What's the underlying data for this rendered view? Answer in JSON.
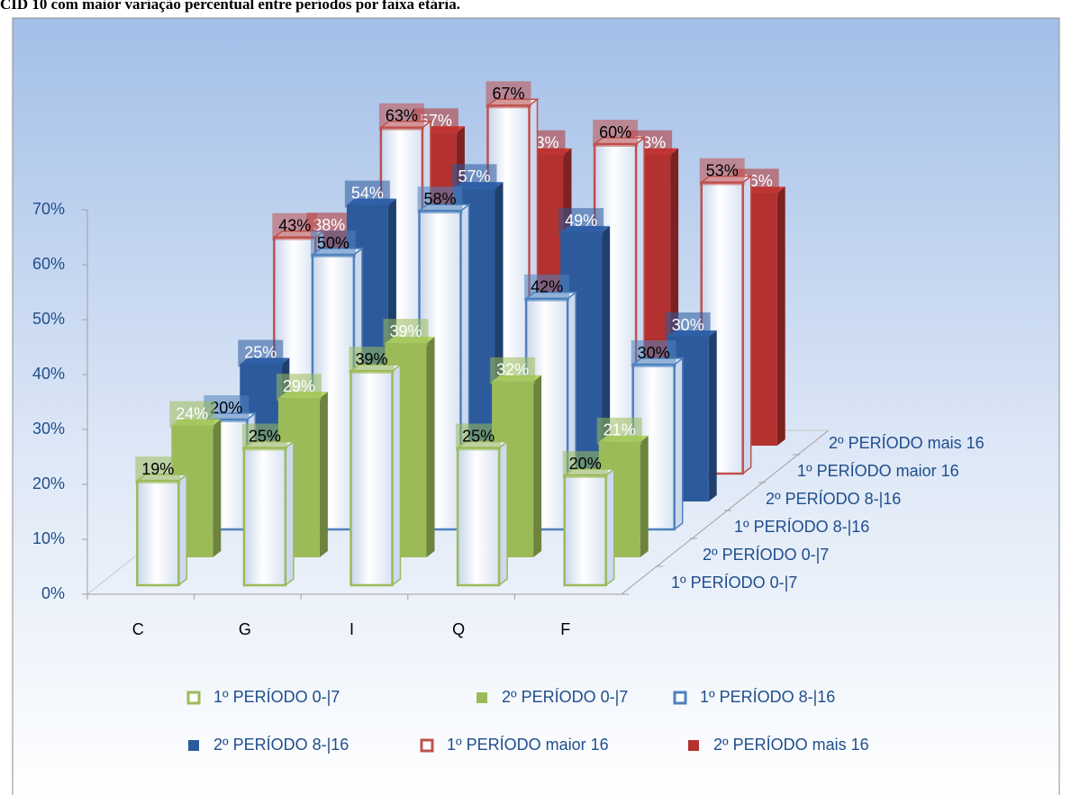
{
  "chart_data": {
    "type": "bar3d",
    "title": "CID 10 com maior variação percentual entre períodos por faixa etária.",
    "categories": [
      "C",
      "G",
      "I",
      "Q",
      "F"
    ],
    "series": [
      {
        "name": "1º PERÍODO 0-|7",
        "color": "#9bbb59",
        "fill": "hollow",
        "values": [
          19,
          25,
          39,
          25,
          20
        ],
        "value_labels": [
          "19%",
          "25%",
          "39%",
          "25%",
          "20%"
        ]
      },
      {
        "name": "2º PERÍODO 0-|7",
        "color": "#9bbb59",
        "fill": "solid",
        "values": [
          24,
          29,
          39,
          32,
          21
        ],
        "value_labels": [
          "24%",
          "29%",
          "39%",
          "32%",
          "21%"
        ]
      },
      {
        "name": "1º PERÍODO 8-|16",
        "color": "#4f81bd",
        "fill": "hollow",
        "values": [
          20,
          50,
          58,
          42,
          30
        ],
        "value_labels": [
          "20%",
          "50%",
          "58%",
          "42%",
          "30%"
        ]
      },
      {
        "name": "2º PERÍODO 8-|16",
        "color": "#2c5a9c",
        "fill": "solid",
        "values": [
          25,
          54,
          57,
          49,
          30
        ],
        "value_labels": [
          "25%",
          "54%",
          "57%",
          "49%",
          "30%"
        ]
      },
      {
        "name": "1º PERÍODO maior 16",
        "color": "#c0504d",
        "fill": "hollow",
        "values": [
          43,
          63,
          67,
          60,
          53
        ],
        "value_labels": [
          "43%",
          "63%",
          "67%",
          "60%",
          "53%"
        ]
      },
      {
        "name": "2º PERÍODO mais 16",
        "color": "#b3312e",
        "fill": "solid",
        "values": [
          38,
          57,
          53,
          53,
          46
        ],
        "value_labels": [
          "38%",
          "57%",
          "53%",
          "53%",
          "46%"
        ]
      }
    ],
    "ylim": [
      0,
      70
    ],
    "yticks": [
      {
        "value": 0,
        "label": "0%"
      },
      {
        "value": 10,
        "label": "10%"
      },
      {
        "value": 20,
        "label": "20%"
      },
      {
        "value": 30,
        "label": "30%"
      },
      {
        "value": 40,
        "label": "40%"
      },
      {
        "value": 50,
        "label": "50%"
      },
      {
        "value": 60,
        "label": "60%"
      },
      {
        "value": 70,
        "label": "70%"
      }
    ],
    "legend": "bottom"
  }
}
